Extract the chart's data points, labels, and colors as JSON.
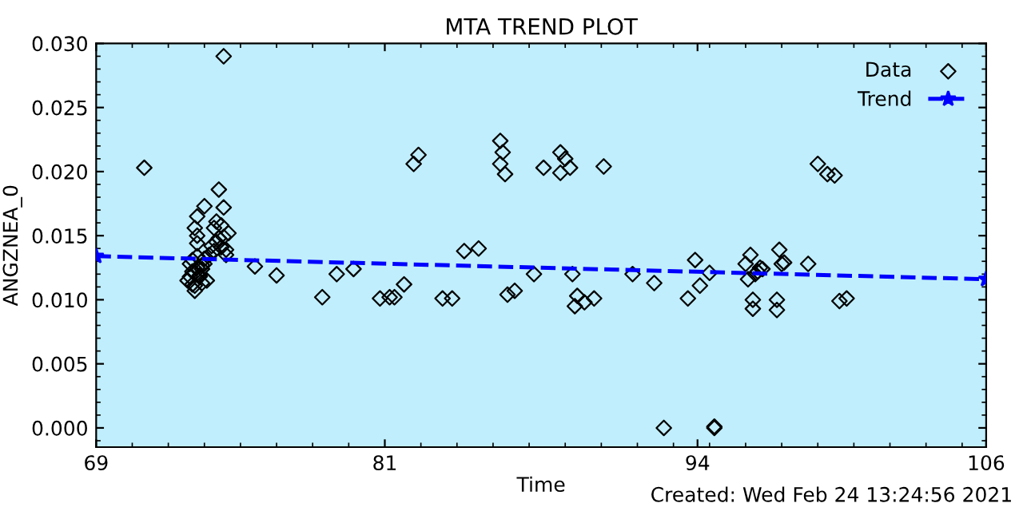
{
  "chart_data": {
    "type": "scatter",
    "title": "MTA TREND PLOT",
    "xlabel": "Time",
    "ylabel": "ANGZNEA_0",
    "annotations": [
      "Created: Wed Feb 24 13:24:56 2021"
    ],
    "xlim": [
      69,
      106
    ],
    "xticks": [
      69,
      81,
      94,
      106
    ],
    "ylim": [
      -0.0015,
      0.03
    ],
    "yticks": [
      {
        "value": 0,
        "label": "0.000"
      },
      {
        "value": 0.005,
        "label": "0.005"
      },
      {
        "value": 0.01,
        "label": "0.010"
      },
      {
        "value": 0.015,
        "label": "0.015"
      },
      {
        "value": 0.02,
        "label": "0.020"
      },
      {
        "value": 0.025,
        "label": "0.025"
      },
      {
        "value": 0.03,
        "label": "0.030"
      }
    ],
    "grid": false,
    "legend": "top right",
    "series": [
      {
        "name": "Data",
        "marker": "diamond",
        "color": "#000000",
        "x": [
          71.0,
          74.3,
          74.1,
          73.5,
          73.2,
          74.3,
          73.1,
          73.2,
          73.2,
          73.1,
          72.8,
          72.9,
          73.0,
          73.1,
          73.2,
          73.3,
          73.4,
          73.5,
          73.6,
          72.9,
          73.0,
          73.1,
          73.3,
          73.4,
          73.5,
          73.7,
          73.8,
          73.9,
          74.0,
          74.1,
          74.2,
          74.4,
          74.5,
          73.9,
          74.0,
          74.2,
          74.3,
          74.4,
          73.0,
          73.2,
          73.4,
          75.6,
          76.5,
          78.4,
          79.0,
          79.7,
          80.8,
          81.2,
          81.4,
          81.8,
          82.2,
          82.4,
          84.3,
          84.9,
          83.4,
          83.8,
          85.8,
          85.9,
          85.8,
          86.0,
          86.1,
          86.4,
          87.2,
          87.6,
          88.3,
          88.5,
          88.7,
          88.3,
          88.8,
          89.0,
          88.9,
          89.3,
          89.7,
          90.1,
          91.3,
          92.2,
          92.6,
          93.6,
          93.9,
          94.1,
          94.5,
          94.7,
          94.7,
          96.2,
          96.0,
          96.1,
          96.5,
          96.6,
          96.7,
          96.4,
          96.3,
          96.3,
          97.3,
          97.3,
          97.4,
          97.5,
          97.6,
          98.6,
          99.0,
          99.4,
          99.7,
          99.9,
          100.2
        ],
        "values": [
          0.0203,
          0.029,
          0.0186,
          0.0173,
          0.0165,
          0.0172,
          0.0156,
          0.015,
          0.0144,
          0.0107,
          0.0115,
          0.0118,
          0.0112,
          0.0121,
          0.0125,
          0.0118,
          0.0113,
          0.0128,
          0.0115,
          0.0128,
          0.0131,
          0.0111,
          0.0119,
          0.0124,
          0.0132,
          0.0135,
          0.0142,
          0.0138,
          0.0145,
          0.0148,
          0.0141,
          0.0135,
          0.0152,
          0.0156,
          0.0161,
          0.0158,
          0.0149,
          0.0139,
          0.0122,
          0.0134,
          0.0127,
          0.0126,
          0.0119,
          0.0102,
          0.012,
          0.0124,
          0.0101,
          0.0102,
          0.0102,
          0.0112,
          0.0206,
          0.0213,
          0.0138,
          0.014,
          0.0101,
          0.0101,
          0.0224,
          0.0215,
          0.0206,
          0.0198,
          0.0104,
          0.0107,
          0.012,
          0.0203,
          0.0215,
          0.021,
          0.0203,
          0.0199,
          0.012,
          0.0103,
          0.0095,
          0.0098,
          0.0101,
          0.0204,
          0.012,
          0.0113,
          0.0,
          0.0101,
          0.0131,
          0.0111,
          0.0121,
          0.0,
          0.0001,
          0.0135,
          0.0128,
          0.0116,
          0.0122,
          0.0125,
          0.0124,
          0.012,
          0.01,
          0.0093,
          0.01,
          0.0092,
          0.0139,
          0.0128,
          0.0129,
          0.0128,
          0.0206,
          0.0198,
          0.0197,
          0.0099,
          0.0101
        ]
      },
      {
        "name": "Trend",
        "type": "line",
        "marker": "star",
        "line_style": "dashed",
        "color": "#0000ff",
        "x": [
          69,
          106
        ],
        "values": [
          0.0134,
          0.0116
        ]
      }
    ]
  }
}
